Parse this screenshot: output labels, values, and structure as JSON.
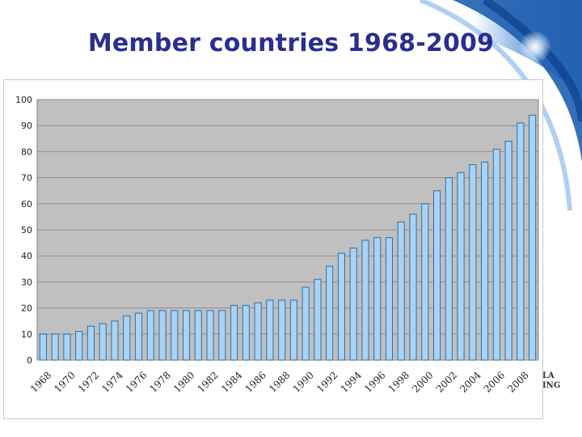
{
  "slide": {
    "title": "Member countries 1968-2009",
    "partial_logo_line1": "LA",
    "partial_logo_line2": "ING"
  },
  "colors": {
    "title": "#2a2f8f",
    "plot_background": "#c0c0c0",
    "bar_fill": "#a9d3f5",
    "bar_stroke": "#2f6fa6",
    "gridline": "#8f8f8f",
    "swoosh": "#1f5fb0"
  },
  "chart_data": {
    "type": "bar",
    "title": "",
    "xlabel": "",
    "ylabel": "",
    "ylim": [
      0,
      100
    ],
    "y_ticks": [
      0,
      10,
      20,
      30,
      40,
      50,
      60,
      70,
      80,
      90,
      100
    ],
    "grid": true,
    "legend": "none",
    "x_tick_labels": [
      "1968",
      "1970",
      "1972",
      "1974",
      "1976",
      "1978",
      "1980",
      "1982",
      "1984",
      "1986",
      "1988",
      "1990",
      "1992",
      "1994",
      "1996",
      "1998",
      "2000",
      "2002",
      "2004",
      "2006",
      "2008"
    ],
    "categories": [
      "1968",
      "1969",
      "1970",
      "1971",
      "1972",
      "1973",
      "1974",
      "1975",
      "1976",
      "1977",
      "1978",
      "1979",
      "1980",
      "1981",
      "1982",
      "1983",
      "1984",
      "1985",
      "1986",
      "1987",
      "1988",
      "1989",
      "1990",
      "1991",
      "1992",
      "1993",
      "1994",
      "1995",
      "1996",
      "1997",
      "1998",
      "1999",
      "2000",
      "2001",
      "2002",
      "2003",
      "2004",
      "2005",
      "2006",
      "2007",
      "2008",
      "2009"
    ],
    "values": [
      10,
      10,
      10,
      11,
      13,
      14,
      15,
      17,
      18,
      19,
      19,
      19,
      19,
      19,
      19,
      19,
      21,
      21,
      22,
      23,
      23,
      23,
      28,
      31,
      36,
      41,
      43,
      46,
      47,
      47,
      53,
      56,
      60,
      65,
      70,
      72,
      75,
      76,
      81,
      84,
      91,
      94
    ]
  }
}
